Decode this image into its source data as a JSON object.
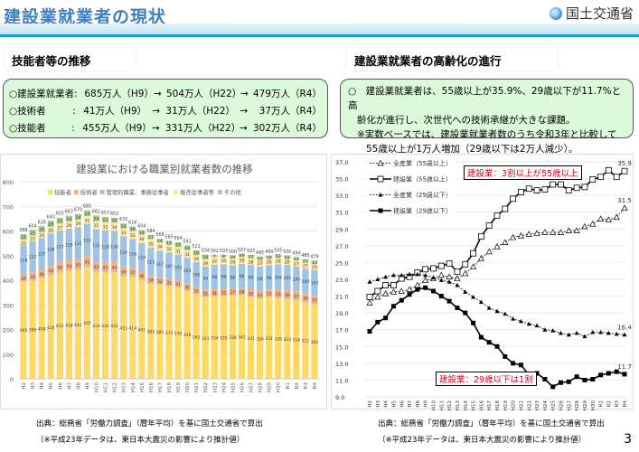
{
  "header": {
    "title": "建設業就業者の現状",
    "logo_text": "国土交通省",
    "logo_icon": "mlit-logo-icon"
  },
  "left": {
    "section_title": "技能者等の推移",
    "summary": [
      {
        "label": "○建設業就業者",
        "colon": ":",
        "v1": "685万人（H9）",
        "arrow1": "→",
        "v2": "504万人（H22）",
        "arrow2": "→",
        "v3": "479万人（R4）"
      },
      {
        "label": "○技術者",
        "colon": ":",
        "v1": "41万人（H9）",
        "arrow1": "→",
        "v2": "31万人（H22）",
        "arrow2": "→",
        "v3": "37万人（R4）"
      },
      {
        "label": "○技能者",
        "colon": ":",
        "v1": "455万人（H9）",
        "arrow1": "→",
        "v2": "331万人（H22）",
        "arrow2": "→",
        "v3": "302万人（R4）"
      }
    ],
    "source": "出典：総務省「労働力調査」（暦年平均）を基に国土交通省で算出",
    "note": "（※平成23年データは、東日本大震災の影響により推計値）"
  },
  "right": {
    "section_title": "建設業就業者の高齢化の進行",
    "summary_lines": [
      "○　建設業就業者は、55歳以上が35.9%、29歳以下が11.7%と高",
      "齢化が進行し、次世代への技術承継が大きな課題。",
      "※実数ベースでは、建設業就業者数のうち令和3年と比較して",
      "55歳以上が1万人増加（29歳以下は2万人減少）。"
    ],
    "source": "出典：総務省「労働力調査」（暦年平均）を基に国土交通省で算出",
    "note": "（※平成23年データは、東日本大震災の影響により推計値）",
    "tag_top": "建設業：3割以上が55歳以上",
    "tag_bottom": "建設業：29歳以下は1割"
  },
  "page_number": "3",
  "chart_data": [
    {
      "type": "bar",
      "stacked": true,
      "title": "建設業における職業別就業者数の推移",
      "xlabel": "",
      "ylabel": "",
      "ylim": [
        0,
        800
      ],
      "yticks": [
        0,
        100,
        200,
        300,
        400,
        500,
        600,
        700,
        800
      ],
      "legend_position": "top",
      "categories": [
        "H2",
        "H3",
        "H4",
        "H5",
        "H6",
        "H7",
        "H8",
        "H9",
        "H10",
        "H11",
        "H12",
        "H13",
        "H14",
        "H15",
        "H16",
        "H17",
        "H18",
        "H19",
        "H20",
        "H21",
        "H22",
        "H23",
        "H24",
        "H25",
        "H26",
        "H27",
        "H28",
        "H29",
        "H30",
        "R1",
        "R2",
        "R3",
        "R4"
      ],
      "totals": [
        588,
        604,
        619,
        640,
        655,
        663,
        670,
        685,
        662,
        657,
        653,
        632,
        618,
        604,
        584,
        568,
        560,
        554,
        541,
        522,
        504,
        502,
        503,
        500,
        507,
        503,
        495,
        499,
        505,
        500,
        494,
        485,
        479
      ],
      "series": [
        {
          "name": "技能者",
          "color": "#ffd966",
          "values": [
            395,
            399,
            408,
            420,
            433,
            438,
            442,
            455,
            434,
            432,
            432,
            415,
            414,
            401,
            385,
            381,
            375,
            370,
            358,
            342,
            331,
            334,
            335,
            338,
            341,
            331,
            326,
            331,
            328,
            324,
            318,
            311,
            302
          ]
        },
        {
          "name": "技術者",
          "color": "#f4b183",
          "values": [
            29,
            33,
            36,
            42,
            42,
            43,
            43,
            41,
            43,
            42,
            42,
            39,
            37,
            36,
            34,
            32,
            31,
            31,
            30,
            32,
            31,
            31,
            32,
            27,
            28,
            32,
            31,
            31,
            33,
            36,
            37,
            36,
            37
          ]
        },
        {
          "name": "管理的職業、事務従事者",
          "color": "#9dc3e6",
          "values": [
            118,
            127,
            127,
            128,
            127,
            128,
            131,
            133,
            131,
            128,
            126,
            124,
            116,
            114,
            113,
            107,
            107,
            103,
            103,
            100,
            94,
            98,
            98,
            96,
            98,
            99,
            99,
            99,
            104,
            102,
            100,
            100,
            103
          ]
        },
        {
          "name": "販売従事者等",
          "color": "#ffe699",
          "values": [
            22,
            22,
            24,
            26,
            27,
            29,
            29,
            31,
            31,
            32,
            34,
            33,
            32,
            34,
            35,
            34,
            32,
            31,
            31,
            29,
            29,
            32,
            30,
            29,
            30,
            28,
            27,
            28,
            28,
            26,
            27,
            27,
            25
          ]
        },
        {
          "name": "その他",
          "color": "#a9d18e",
          "values": [
            24,
            25,
            26,
            26,
            25,
            24,
            24,
            24,
            24,
            23,
            20,
            20,
            19,
            19,
            17,
            14,
            15,
            19,
            19,
            19,
            19,
            7,
            8,
            10,
            10,
            13,
            12,
            10,
            12,
            12,
            12,
            11,
            12
          ]
        }
      ]
    },
    {
      "type": "line",
      "title": "",
      "xlabel": "",
      "ylabel": "",
      "ylim": [
        9.0,
        37.0
      ],
      "yticks": [
        9.0,
        11.0,
        13.0,
        15.0,
        17.0,
        19.0,
        21.0,
        23.0,
        25.0,
        27.0,
        29.0,
        31.0,
        33.0,
        35.0,
        37.0
      ],
      "legend_position": "top-left",
      "categories": [
        "H2",
        "H3",
        "H4",
        "H5",
        "H6",
        "H7",
        "H8",
        "H9",
        "H10",
        "H11",
        "H12",
        "H13",
        "H14",
        "H15",
        "H16",
        "H17",
        "H18",
        "H19",
        "H20",
        "H21",
        "H22",
        "H23",
        "H24",
        "H25",
        "H26",
        "H27",
        "H28",
        "H29",
        "H30",
        "R1",
        "R2",
        "R3",
        "R4"
      ],
      "series": [
        {
          "name": "全産業（55歳以上）",
          "style": "dashed",
          "marker": "open-triangle",
          "end_label": "31.5",
          "values": [
            20.2,
            20.9,
            21.3,
            21.5,
            21.6,
            21.8,
            22.3,
            22.9,
            23.1,
            23.5,
            23.3,
            23.1,
            23.7,
            24.5,
            25.5,
            26.3,
            26.9,
            27.4,
            28.0,
            28.2,
            28.4,
            28.5,
            28.6,
            28.6,
            28.6,
            28.8,
            28.8,
            29.3,
            29.6,
            30.2,
            30.1,
            30.4,
            31.5
          ]
        },
        {
          "name": "建設業（55歳以上）",
          "style": "solid",
          "marker": "open-square",
          "end_label": "35.9",
          "values": [
            20.9,
            21.6,
            22.3,
            22.3,
            23.1,
            23.3,
            23.8,
            24.2,
            24.3,
            24.6,
            24.9,
            23.9,
            24.8,
            26.1,
            28.1,
            29.4,
            30.6,
            31.4,
            32.6,
            33.4,
            33.8,
            33.6,
            33.7,
            34.3,
            34.3,
            33.6,
            33.9,
            34.0,
            34.9,
            35.2,
            36.0,
            35.2,
            35.9
          ]
        },
        {
          "name": "全産業（29歳以下）",
          "style": "dashed",
          "marker": "filled-triangle",
          "end_label": "16.4",
          "values": [
            22.7,
            23.0,
            23.3,
            23.5,
            23.5,
            23.6,
            23.6,
            23.5,
            23.2,
            22.9,
            22.7,
            22.3,
            21.5,
            20.9,
            20.3,
            19.6,
            19.2,
            18.9,
            18.3,
            18.0,
            17.7,
            17.5,
            17.0,
            16.9,
            16.6,
            16.4,
            16.6,
            16.2,
            16.7,
            16.7,
            16.6,
            16.5,
            16.4
          ]
        },
        {
          "name": "建設業（29歳以下）",
          "style": "solid",
          "marker": "filled-square",
          "end_label": "11.7",
          "values": [
            16.8,
            17.9,
            18.4,
            19.8,
            20.5,
            21.2,
            21.8,
            22.0,
            21.6,
            21.0,
            20.4,
            19.6,
            19.0,
            17.8,
            16.1,
            15.5,
            15.0,
            13.8,
            13.0,
            12.8,
            11.6,
            11.8,
            11.1,
            10.2,
            10.7,
            10.8,
            11.4,
            11.0,
            11.1,
            11.6,
            11.8,
            12.0,
            11.7
          ]
        }
      ]
    }
  ]
}
